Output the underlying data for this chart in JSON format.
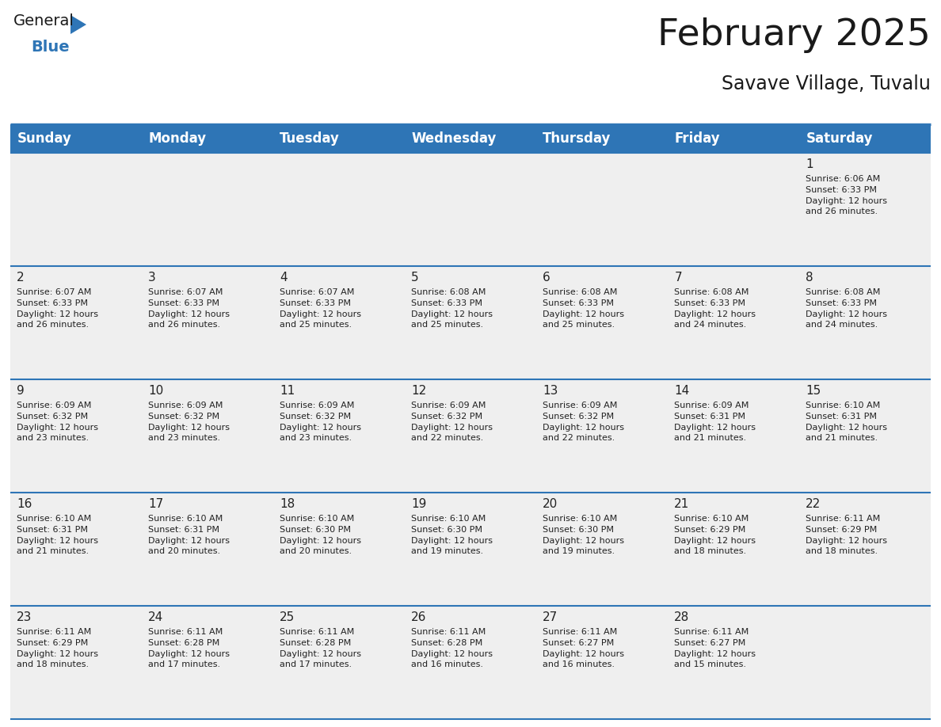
{
  "title": "February 2025",
  "subtitle": "Savave Village, Tuvalu",
  "header_bg": "#2E75B6",
  "header_text": "#FFFFFF",
  "cell_bg": "#EFEFEF",
  "cell_bg_white": "#FFFFFF",
  "border_color": "#2E75B6",
  "text_color": "#222222",
  "day_num_color": "#222222",
  "days_of_week": [
    "Sunday",
    "Monday",
    "Tuesday",
    "Wednesday",
    "Thursday",
    "Friday",
    "Saturday"
  ],
  "calendar_data": [
    [
      null,
      null,
      null,
      null,
      null,
      null,
      {
        "day": 1,
        "sunrise": "6:06 AM",
        "sunset": "6:33 PM",
        "daylight": "12 hours",
        "daylight2": "and 26 minutes."
      }
    ],
    [
      {
        "day": 2,
        "sunrise": "6:07 AM",
        "sunset": "6:33 PM",
        "daylight": "12 hours",
        "daylight2": "and 26 minutes."
      },
      {
        "day": 3,
        "sunrise": "6:07 AM",
        "sunset": "6:33 PM",
        "daylight": "12 hours",
        "daylight2": "and 26 minutes."
      },
      {
        "day": 4,
        "sunrise": "6:07 AM",
        "sunset": "6:33 PM",
        "daylight": "12 hours",
        "daylight2": "and 25 minutes."
      },
      {
        "day": 5,
        "sunrise": "6:08 AM",
        "sunset": "6:33 PM",
        "daylight": "12 hours",
        "daylight2": "and 25 minutes."
      },
      {
        "day": 6,
        "sunrise": "6:08 AM",
        "sunset": "6:33 PM",
        "daylight": "12 hours",
        "daylight2": "and 25 minutes."
      },
      {
        "day": 7,
        "sunrise": "6:08 AM",
        "sunset": "6:33 PM",
        "daylight": "12 hours",
        "daylight2": "and 24 minutes."
      },
      {
        "day": 8,
        "sunrise": "6:08 AM",
        "sunset": "6:33 PM",
        "daylight": "12 hours",
        "daylight2": "and 24 minutes."
      }
    ],
    [
      {
        "day": 9,
        "sunrise": "6:09 AM",
        "sunset": "6:32 PM",
        "daylight": "12 hours",
        "daylight2": "and 23 minutes."
      },
      {
        "day": 10,
        "sunrise": "6:09 AM",
        "sunset": "6:32 PM",
        "daylight": "12 hours",
        "daylight2": "and 23 minutes."
      },
      {
        "day": 11,
        "sunrise": "6:09 AM",
        "sunset": "6:32 PM",
        "daylight": "12 hours",
        "daylight2": "and 23 minutes."
      },
      {
        "day": 12,
        "sunrise": "6:09 AM",
        "sunset": "6:32 PM",
        "daylight": "12 hours",
        "daylight2": "and 22 minutes."
      },
      {
        "day": 13,
        "sunrise": "6:09 AM",
        "sunset": "6:32 PM",
        "daylight": "12 hours",
        "daylight2": "and 22 minutes."
      },
      {
        "day": 14,
        "sunrise": "6:09 AM",
        "sunset": "6:31 PM",
        "daylight": "12 hours",
        "daylight2": "and 21 minutes."
      },
      {
        "day": 15,
        "sunrise": "6:10 AM",
        "sunset": "6:31 PM",
        "daylight": "12 hours",
        "daylight2": "and 21 minutes."
      }
    ],
    [
      {
        "day": 16,
        "sunrise": "6:10 AM",
        "sunset": "6:31 PM",
        "daylight": "12 hours",
        "daylight2": "and 21 minutes."
      },
      {
        "day": 17,
        "sunrise": "6:10 AM",
        "sunset": "6:31 PM",
        "daylight": "12 hours",
        "daylight2": "and 20 minutes."
      },
      {
        "day": 18,
        "sunrise": "6:10 AM",
        "sunset": "6:30 PM",
        "daylight": "12 hours",
        "daylight2": "and 20 minutes."
      },
      {
        "day": 19,
        "sunrise": "6:10 AM",
        "sunset": "6:30 PM",
        "daylight": "12 hours",
        "daylight2": "and 19 minutes."
      },
      {
        "day": 20,
        "sunrise": "6:10 AM",
        "sunset": "6:30 PM",
        "daylight": "12 hours",
        "daylight2": "and 19 minutes."
      },
      {
        "day": 21,
        "sunrise": "6:10 AM",
        "sunset": "6:29 PM",
        "daylight": "12 hours",
        "daylight2": "and 18 minutes."
      },
      {
        "day": 22,
        "sunrise": "6:11 AM",
        "sunset": "6:29 PM",
        "daylight": "12 hours",
        "daylight2": "and 18 minutes."
      }
    ],
    [
      {
        "day": 23,
        "sunrise": "6:11 AM",
        "sunset": "6:29 PM",
        "daylight": "12 hours",
        "daylight2": "and 18 minutes."
      },
      {
        "day": 24,
        "sunrise": "6:11 AM",
        "sunset": "6:28 PM",
        "daylight": "12 hours",
        "daylight2": "and 17 minutes."
      },
      {
        "day": 25,
        "sunrise": "6:11 AM",
        "sunset": "6:28 PM",
        "daylight": "12 hours",
        "daylight2": "and 17 minutes."
      },
      {
        "day": 26,
        "sunrise": "6:11 AM",
        "sunset": "6:28 PM",
        "daylight": "12 hours",
        "daylight2": "and 16 minutes."
      },
      {
        "day": 27,
        "sunrise": "6:11 AM",
        "sunset": "6:27 PM",
        "daylight": "12 hours",
        "daylight2": "and 16 minutes."
      },
      {
        "day": 28,
        "sunrise": "6:11 AM",
        "sunset": "6:27 PM",
        "daylight": "12 hours",
        "daylight2": "and 15 minutes."
      },
      null
    ]
  ],
  "num_rows": 5,
  "num_cols": 7,
  "logo_color_general": "#1a1a1a",
  "logo_color_blue": "#2E75B6",
  "title_fontsize": 34,
  "subtitle_fontsize": 17,
  "header_fontsize": 12,
  "day_number_fontsize": 11,
  "cell_text_fontsize": 8
}
